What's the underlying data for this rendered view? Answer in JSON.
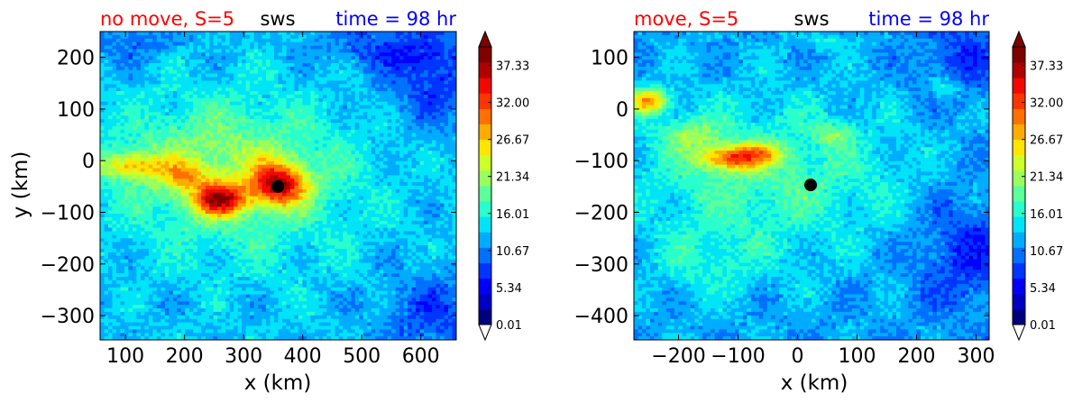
{
  "colormap": [
    "#00007f",
    "#0000c4",
    "#0000ff",
    "#0034ff",
    "#0070ff",
    "#00acff",
    "#00e4f7",
    "#29ffcd",
    "#5dff9a",
    "#9aff5d",
    "#cdff29",
    "#ffe500",
    "#ffac00",
    "#ff7000",
    "#ff3400",
    "#f10800",
    "#b10000",
    "#7f0000"
  ],
  "chart_data": [
    {
      "type": "heatmap",
      "title_left": "no move, S=5",
      "title_center": "sws",
      "title_right": "time = 98 hr",
      "title_left_color": "#ff0000",
      "title_right_color": "#0000ff",
      "xlabel": "x (km)",
      "ylabel": "y (km)",
      "xlim": [
        57,
        660
      ],
      "ylim": [
        -347,
        250
      ],
      "xticks": [
        "100",
        "200",
        "300",
        "400",
        "500",
        "600"
      ],
      "xtick_values": [
        100,
        200,
        300,
        400,
        500,
        600
      ],
      "yticks": [
        "200",
        "100",
        "0",
        "−100",
        "−200",
        "−300"
      ],
      "ytick_values": [
        200,
        100,
        0,
        -100,
        -200,
        -300
      ],
      "center": [
        358,
        -50
      ],
      "base_value": 13,
      "field": [
        {
          "x": 360,
          "y": -45,
          "sx": 45,
          "sy": 40,
          "a": 19
        },
        {
          "x": 260,
          "y": -75,
          "sx": 45,
          "sy": 30,
          "a": 18
        },
        {
          "x": 200,
          "y": -30,
          "sx": 40,
          "sy": 25,
          "a": 8
        },
        {
          "x": 110,
          "y": -10,
          "sx": 60,
          "sy": 25,
          "a": 10
        },
        {
          "x": 250,
          "y": -10,
          "sx": 190,
          "sy": 120,
          "a": 6
        },
        {
          "x": 320,
          "y": -60,
          "sx": 200,
          "sy": 170,
          "a": 3
        },
        {
          "x": 620,
          "y": 170,
          "sx": 80,
          "sy": 90,
          "a": -6
        },
        {
          "x": 630,
          "y": -300,
          "sx": 90,
          "sy": 80,
          "a": -5
        },
        {
          "x": 520,
          "y": 220,
          "sx": 90,
          "sy": 40,
          "a": -4
        },
        {
          "x": 120,
          "y": 230,
          "sx": 80,
          "sy": 40,
          "a": -3
        }
      ],
      "colorbar": {
        "ticks": [
          "37.33",
          "32.00",
          "26.67",
          "21.34",
          "16.01",
          "10.67",
          "5.34",
          "0.01"
        ],
        "tick_values": [
          37.33,
          32.0,
          26.67,
          21.34,
          16.01,
          10.67,
          5.34,
          0.01
        ],
        "min": 0.01,
        "max": 40.0
      }
    },
    {
      "type": "heatmap",
      "title_left": "move, S=5",
      "title_center": "sws",
      "title_right": "time = 98 hr",
      "title_left_color": "#ff0000",
      "title_right_color": "#0000ff",
      "xlabel": "x (km)",
      "ylabel": "",
      "xlim": [
        -275,
        322
      ],
      "ylim": [
        -447,
        150
      ],
      "xticks": [
        "−200",
        "−100",
        "0",
        "100",
        "200",
        "300"
      ],
      "xtick_values": [
        -200,
        -100,
        0,
        100,
        200,
        300
      ],
      "yticks": [
        "100",
        "0",
        "−100",
        "−200",
        "−300",
        "−400"
      ],
      "ytick_values": [
        100,
        0,
        -100,
        -200,
        -300,
        -400
      ],
      "center": [
        22,
        -147
      ],
      "base_value": 12,
      "field": [
        {
          "x": -250,
          "y": 15,
          "sx": 35,
          "sy": 25,
          "a": 15
        },
        {
          "x": -110,
          "y": -95,
          "sx": 55,
          "sy": 25,
          "a": 15
        },
        {
          "x": -60,
          "y": -85,
          "sx": 40,
          "sy": 20,
          "a": 6
        },
        {
          "x": -180,
          "y": -50,
          "sx": 50,
          "sy": 30,
          "a": 6
        },
        {
          "x": 60,
          "y": -50,
          "sx": 30,
          "sy": 20,
          "a": 6
        },
        {
          "x": -50,
          "y": -130,
          "sx": 230,
          "sy": 150,
          "a": 6
        },
        {
          "x": -150,
          "y": -300,
          "sx": 100,
          "sy": 70,
          "a": 3
        },
        {
          "x": 290,
          "y": -280,
          "sx": 90,
          "sy": 110,
          "a": -5
        },
        {
          "x": 280,
          "y": 100,
          "sx": 80,
          "sy": 80,
          "a": -4
        },
        {
          "x": 250,
          "y": 40,
          "sx": 25,
          "sy": 20,
          "a": 5
        },
        {
          "x": 50,
          "y": 130,
          "sx": 40,
          "sy": 15,
          "a": 3
        }
      ],
      "colorbar": {
        "ticks": [
          "37.33",
          "32.00",
          "26.67",
          "21.34",
          "16.01",
          "10.67",
          "5.34",
          "0.01"
        ],
        "tick_values": [
          37.33,
          32.0,
          26.67,
          21.34,
          16.01,
          10.67,
          5.34,
          0.01
        ],
        "min": 0.01,
        "max": 40.0
      }
    }
  ]
}
